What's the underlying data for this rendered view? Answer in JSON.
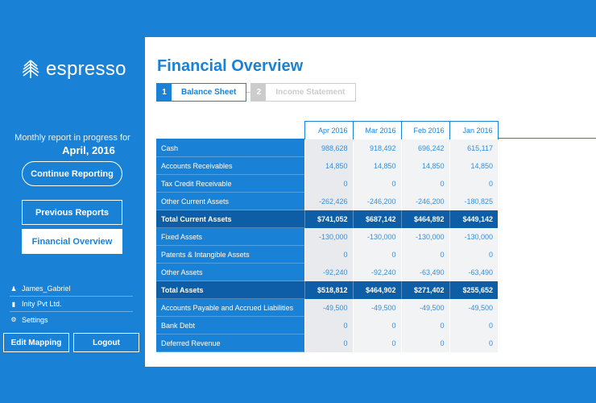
{
  "brand": {
    "name": "espresso",
    "logo_icon": "leaf-icon"
  },
  "sidebar": {
    "report_text": "Monthly report in progress for",
    "report_month": "April, 2016",
    "continue_label": "Continue Reporting",
    "previous_label": "Previous Reports",
    "overview_label": "Financial Overview",
    "user": {
      "name": "James_Gabriel",
      "company": "Inity Pvt Ltd.",
      "settings": "Settings"
    },
    "edit_mapping_label": "Edit Mapping",
    "logout_label": "Logout"
  },
  "main": {
    "title": "Financial Overview",
    "steps": [
      {
        "num": "1",
        "label": "Balance Sheet",
        "active": true
      },
      {
        "num": "2",
        "label": "Income Statement",
        "active": false
      }
    ],
    "table": {
      "columns": [
        "Apr 2016",
        "Mar 2016",
        "Feb 2016",
        "Jan 2016"
      ],
      "rows": [
        {
          "label": "Cash",
          "values": [
            "988,628",
            "918,492",
            "696,242",
            "615,117"
          ],
          "total": false
        },
        {
          "label": "Accounts Receivables",
          "values": [
            "14,850",
            "14,850",
            "14,850",
            "14,850"
          ],
          "total": false
        },
        {
          "label": "Tax Credit Receivable",
          "values": [
            "0",
            "0",
            "0",
            "0"
          ],
          "total": false
        },
        {
          "label": "Other Current Assets",
          "values": [
            "-262,426",
            "-246,200",
            "-246,200",
            "-180,825"
          ],
          "total": false
        },
        {
          "label": "Total Current Assets",
          "values": [
            "$741,052",
            "$687,142",
            "$464,892",
            "$449,142"
          ],
          "total": true
        },
        {
          "label": "Fixed Assets",
          "values": [
            "-130,000",
            "-130,000",
            "-130,000",
            "-130,000"
          ],
          "total": false
        },
        {
          "label": "Patents & Intangible Assets",
          "values": [
            "0",
            "0",
            "0",
            "0"
          ],
          "total": false
        },
        {
          "label": "Other Assets",
          "values": [
            "-92,240",
            "-92,240",
            "-63,490",
            "-63,490"
          ],
          "total": false
        },
        {
          "label": "Total Assets",
          "values": [
            "$518,812",
            "$464,902",
            "$271,402",
            "$255,652"
          ],
          "total": true
        },
        {
          "label": "Accounts Payable and Accrued Liabilities",
          "values": [
            "-49,500",
            "-49,500",
            "-49,500",
            "-49,500"
          ],
          "total": false
        },
        {
          "label": "Bank Debt",
          "values": [
            "0",
            "0",
            "0",
            "0"
          ],
          "total": false
        },
        {
          "label": "Deferred Revenue",
          "values": [
            "0",
            "0",
            "0",
            "0"
          ],
          "total": false
        }
      ]
    }
  },
  "colors": {
    "primary": "#1a82d6",
    "dark": "#0d5ea6",
    "cell_bg": "#f2f3f5",
    "value_text": "#2f8fe0"
  }
}
